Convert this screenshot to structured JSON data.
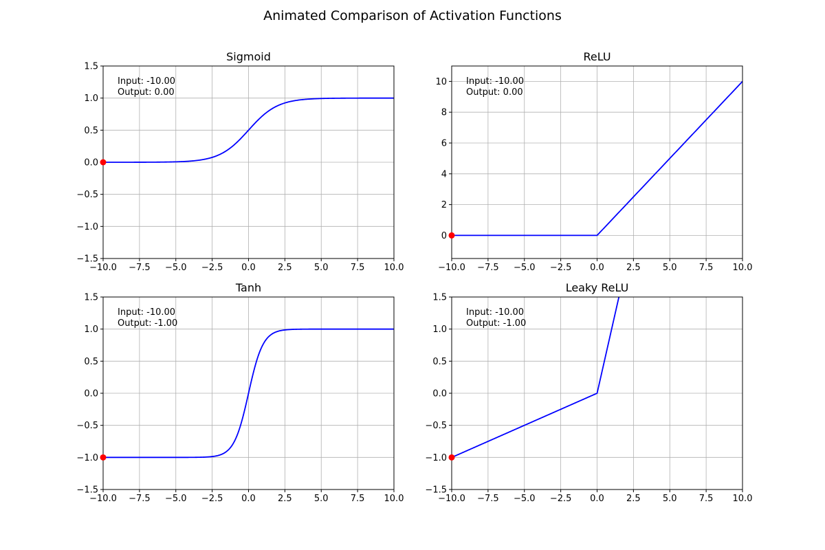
{
  "figure_title": "Animated Comparison of Activation Functions",
  "chart_data": [
    {
      "type": "line",
      "title": "Sigmoid",
      "function": "sigmoid",
      "xlim": [
        -10,
        10
      ],
      "ylim": [
        -1.5,
        1.5
      ],
      "xticks": [
        -10,
        -7.5,
        -5,
        -2.5,
        0,
        2.5,
        5,
        7.5,
        10
      ],
      "xtick_labels": [
        "−10.0",
        "−7.5",
        "−5.0",
        "−2.5",
        "0.0",
        "2.5",
        "5.0",
        "7.5",
        "10.0"
      ],
      "yticks": [
        -1.5,
        -1,
        -0.5,
        0,
        0.5,
        1,
        1.5
      ],
      "ytick_labels": [
        "−1.5",
        "−1.0",
        "−0.5",
        "0.0",
        "0.5",
        "1.0",
        "1.5"
      ],
      "grid": true,
      "line_color": "#0000ff",
      "marker": {
        "x": -10,
        "y": 0,
        "color": "#ff0000"
      },
      "annotation": {
        "input": "Input: -10.00",
        "output": "Output: 0.00"
      }
    },
    {
      "type": "line",
      "title": "ReLU",
      "function": "relu",
      "xlim": [
        -10,
        10
      ],
      "ylim": [
        -1.5,
        11
      ],
      "xticks": [
        -10,
        -7.5,
        -5,
        -2.5,
        0,
        2.5,
        5,
        7.5,
        10
      ],
      "xtick_labels": [
        "−10.0",
        "−7.5",
        "−5.0",
        "−2.5",
        "0.0",
        "2.5",
        "5.0",
        "7.5",
        "10.0"
      ],
      "yticks": [
        0,
        2,
        4,
        6,
        8,
        10
      ],
      "ytick_labels": [
        "0",
        "2",
        "4",
        "6",
        "8",
        "10"
      ],
      "grid": true,
      "line_color": "#0000ff",
      "marker": {
        "x": -10,
        "y": 0,
        "color": "#ff0000"
      },
      "annotation": {
        "input": "Input: -10.00",
        "output": "Output: 0.00"
      }
    },
    {
      "type": "line",
      "title": "Tanh",
      "function": "tanh",
      "xlim": [
        -10,
        10
      ],
      "ylim": [
        -1.5,
        1.5
      ],
      "xticks": [
        -10,
        -7.5,
        -5,
        -2.5,
        0,
        2.5,
        5,
        7.5,
        10
      ],
      "xtick_labels": [
        "−10.0",
        "−7.5",
        "−5.0",
        "−2.5",
        "0.0",
        "2.5",
        "5.0",
        "7.5",
        "10.0"
      ],
      "yticks": [
        -1.5,
        -1,
        -0.5,
        0,
        0.5,
        1,
        1.5
      ],
      "ytick_labels": [
        "−1.5",
        "−1.0",
        "−0.5",
        "0.0",
        "0.5",
        "1.0",
        "1.5"
      ],
      "grid": true,
      "line_color": "#0000ff",
      "marker": {
        "x": -10,
        "y": -1,
        "color": "#ff0000"
      },
      "annotation": {
        "input": "Input: -10.00",
        "output": "Output: -1.00"
      }
    },
    {
      "type": "line",
      "title": "Leaky ReLU",
      "function": "leaky_relu",
      "xlim": [
        -10,
        10
      ],
      "ylim": [
        -1.5,
        1.5
      ],
      "xticks": [
        -10,
        -7.5,
        -5,
        -2.5,
        0,
        2.5,
        5,
        7.5,
        10
      ],
      "xtick_labels": [
        "−10.0",
        "−7.5",
        "−5.0",
        "−2.5",
        "0.0",
        "2.5",
        "5.0",
        "7.5",
        "10.0"
      ],
      "yticks": [
        -1.5,
        -1,
        -0.5,
        0,
        0.5,
        1,
        1.5
      ],
      "ytick_labels": [
        "−1.5",
        "−1.0",
        "−0.5",
        "0.0",
        "0.5",
        "1.0",
        "1.5"
      ],
      "grid": true,
      "line_color": "#0000ff",
      "marker": {
        "x": -10,
        "y": -1,
        "color": "#ff0000"
      },
      "annotation": {
        "input": "Input: -10.00",
        "output": "Output: -1.00"
      }
    }
  ]
}
